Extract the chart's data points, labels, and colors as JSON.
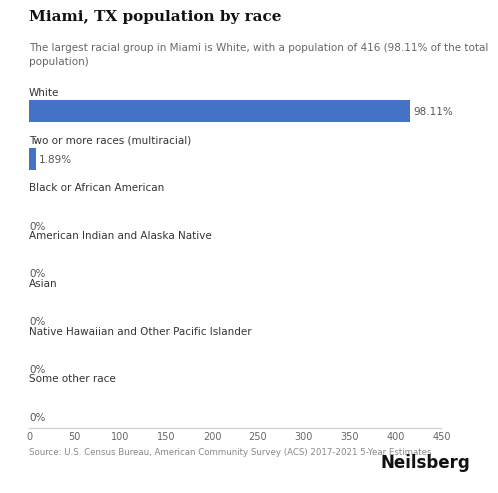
{
  "title": "Miami, TX population by race",
  "subtitle": "The largest racial group in Miami is White, with a population of 416 (98.11% of the total\npopulation)",
  "categories": [
    "White",
    "Two or more races (multiracial)",
    "Black or African American",
    "American Indian and Alaska Native",
    "Asian",
    "Native Hawaiian and Other Pacific Islander",
    "Some other race"
  ],
  "values": [
    416,
    8,
    0,
    0,
    0,
    0,
    0
  ],
  "percentages": [
    "98.11%",
    "1.89%",
    "0%",
    "0%",
    "0%",
    "0%",
    "0%"
  ],
  "bar_color": "#4472C4",
  "xlim": [
    0,
    450
  ],
  "xticks": [
    0,
    50,
    100,
    150,
    200,
    250,
    300,
    350,
    400,
    450
  ],
  "background_color": "#ffffff",
  "title_fontsize": 11,
  "subtitle_fontsize": 7.5,
  "label_fontsize": 7.5,
  "pct_fontsize": 7.5,
  "tick_fontsize": 7,
  "source_text": "Source: U.S. Census Bureau, American Community Survey (ACS) 2017-2021 5-Year Estimates",
  "brand_text": "Neilsberg",
  "title_color": "#111111",
  "subtitle_color": "#666666",
  "label_color": "#333333",
  "pct_color": "#555555",
  "source_color": "#888888",
  "brand_color": "#111111",
  "bar_height": 0.45
}
